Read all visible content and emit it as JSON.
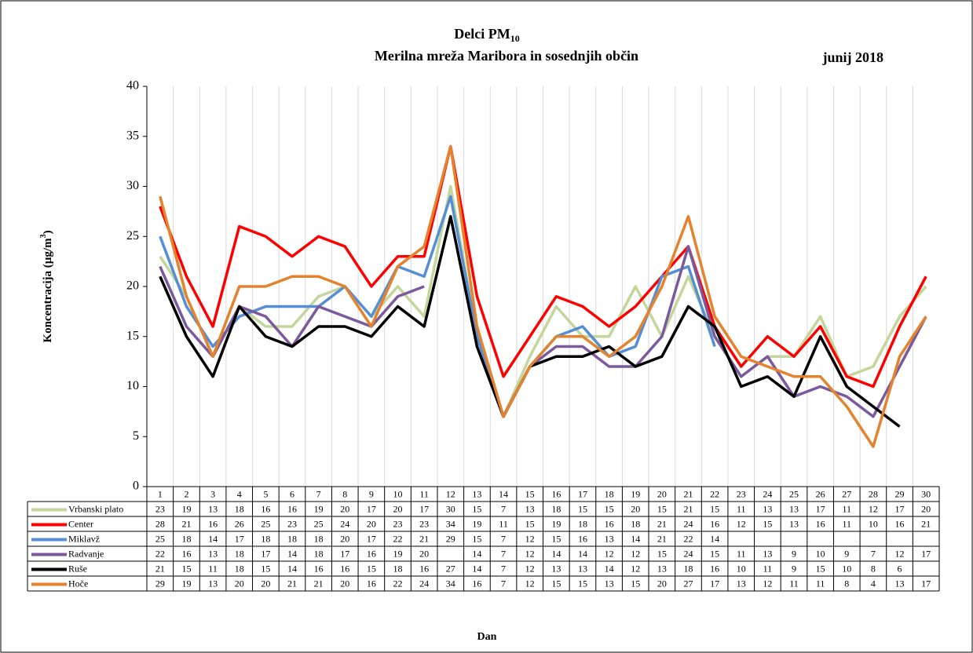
{
  "chart_data": {
    "type": "line",
    "title": "Delci PM",
    "title_sub": "10",
    "subtitle": "Merilna mreža Maribora in sosednjih občin",
    "annotation": "junij 2018",
    "y_label": "Koncentracija  (µg/m",
    "y_label_sup": "3",
    "y_label_end": ")",
    "x_label": "Dan",
    "categories": [
      1,
      2,
      3,
      4,
      5,
      6,
      7,
      8,
      9,
      10,
      11,
      12,
      13,
      14,
      15,
      16,
      17,
      18,
      19,
      20,
      21,
      22,
      23,
      24,
      25,
      26,
      27,
      28,
      29,
      30
    ],
    "ylim": [
      0,
      40
    ],
    "yticks": [
      0,
      5,
      10,
      15,
      20,
      25,
      30,
      35,
      40
    ],
    "grid": true,
    "series": [
      {
        "name": "Vrbanski plato",
        "color": "#c3d69b",
        "values": [
          23,
          19,
          13,
          18,
          16,
          16,
          19,
          20,
          17,
          20,
          17,
          30,
          15,
          7,
          13,
          18,
          15,
          15,
          20,
          15,
          21,
          15,
          11,
          13,
          13,
          17,
          11,
          12,
          17,
          20
        ]
      },
      {
        "name": "Center",
        "color": "#ff0000",
        "values": [
          28,
          21,
          16,
          26,
          25,
          23,
          25,
          24,
          20,
          23,
          23,
          34,
          19,
          11,
          15,
          19,
          18,
          16,
          18,
          21,
          24,
          16,
          12,
          15,
          13,
          16,
          11,
          10,
          16,
          21
        ]
      },
      {
        "name": "Miklavž",
        "color": "#558ed5",
        "values": [
          25,
          18,
          14,
          17,
          18,
          18,
          18,
          20,
          17,
          22,
          21,
          29,
          15,
          7,
          12,
          15,
          16,
          13,
          14,
          21,
          22,
          14,
          null,
          null,
          null,
          null,
          null,
          null,
          null,
          null
        ]
      },
      {
        "name": "Radvanje",
        "color": "#7a5a9c",
        "values": [
          22,
          16,
          13,
          18,
          17,
          14,
          18,
          17,
          16,
          19,
          20,
          null,
          14,
          7,
          12,
          14,
          14,
          12,
          12,
          15,
          24,
          15,
          11,
          13,
          9,
          10,
          9,
          7,
          12,
          17
        ]
      },
      {
        "name": "Ruše",
        "color": "#000000",
        "values": [
          21,
          15,
          11,
          18,
          15,
          14,
          16,
          16,
          15,
          18,
          16,
          27,
          14,
          7,
          12,
          13,
          13,
          14,
          12,
          13,
          18,
          16,
          10,
          11,
          9,
          15,
          10,
          8,
          6,
          null
        ]
      },
      {
        "name": "Hoče",
        "color": "#e4832e",
        "values": [
          29,
          19,
          13,
          20,
          20,
          21,
          21,
          20,
          16,
          22,
          24,
          34,
          16,
          7,
          12,
          15,
          15,
          13,
          15,
          20,
          27,
          17,
          13,
          12,
          11,
          11,
          8,
          4,
          13,
          17
        ]
      }
    ]
  }
}
